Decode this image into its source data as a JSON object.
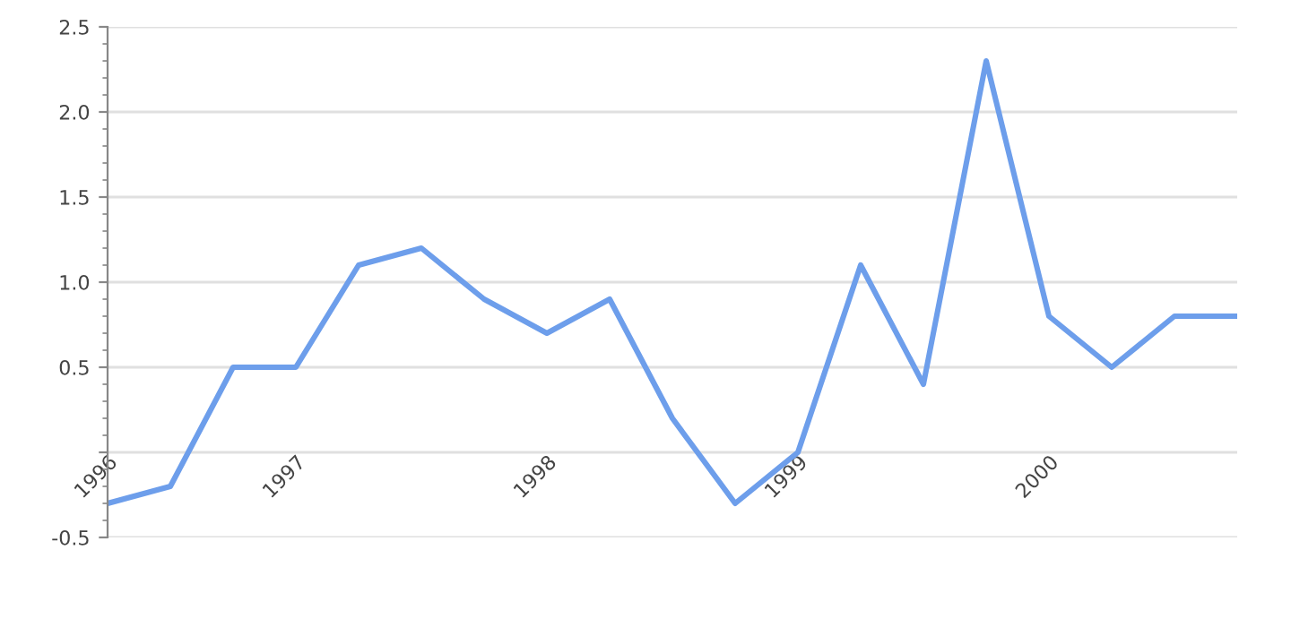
{
  "chart_data": {
    "type": "line",
    "categories": [
      "1996",
      null,
      null,
      "1997",
      null,
      null,
      null,
      "1998",
      null,
      null,
      null,
      "1999",
      null,
      null,
      null,
      "2000",
      null,
      null,
      null
    ],
    "series": [
      {
        "color": "#6d9eeb",
        "values": [
          -0.3,
          -0.2,
          0.5,
          0.5,
          1.1,
          1.2,
          0.9,
          0.7,
          0.9,
          0.2,
          -0.3,
          0.0,
          1.1,
          0.4,
          2.3,
          0.8,
          0.5,
          0.8,
          0.8
        ]
      }
    ],
    "ylim": [
      -0.5,
      2.5
    ],
    "yticks": [
      -0.5,
      {
        "value": 0,
        "label": null
      },
      0.5,
      {
        "value": 1,
        "label": "1.0"
      },
      1.5,
      {
        "value": 2,
        "label": "2.0"
      },
      2.5
    ],
    "grid": "y",
    "legend": false,
    "marker": "none",
    "line_style": "solid"
  }
}
